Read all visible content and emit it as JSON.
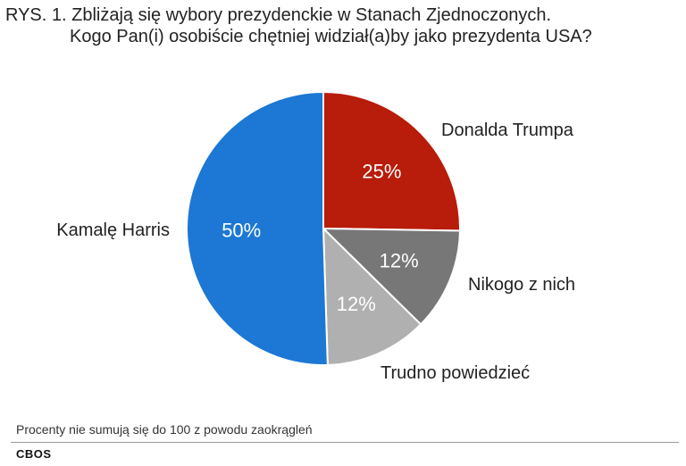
{
  "title": {
    "line1": "RYS. 1. Zbliżają się wybory prezydenckie w Stanach Zjednoczonych.",
    "line2": "Kogo Pan(i) osobiście chętniej widział(a)by jako prezydenta USA?"
  },
  "chart_data": {
    "type": "pie",
    "title": "RYS. 1. Zbliżają się wybory prezydenckie w Stanach Zjednoczonych. Kogo Pan(i) osobiście chętniej widział(a)by jako prezydenta USA?",
    "slices": [
      {
        "label": "Donalda Trumpa",
        "value": 25,
        "display": "25%",
        "color": "#b81c0a"
      },
      {
        "label": "Nikogo z nich",
        "value": 12,
        "display": "12%",
        "color": "#777777"
      },
      {
        "label": "Trudno powiedzieć",
        "value": 12,
        "display": "12%",
        "color": "#b0b0b0"
      },
      {
        "label": "Kamalę Harris",
        "value": 50,
        "display": "50%",
        "color": "#1c78d4"
      }
    ],
    "start_angle_deg": 0,
    "direction": "clockwise"
  },
  "footnote": "Procenty nie sumują się do 100 z powodu zaokrągleń",
  "source": "CBOS"
}
